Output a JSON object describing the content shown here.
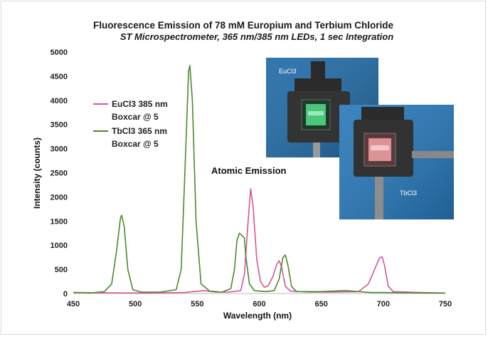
{
  "chart_data": {
    "type": "line",
    "title": "Fluorescence Emission of 78 mM Europium and Terbium Chloride",
    "subtitle": "ST Microspectrometer, 365 nm/385 nm LEDs, 1 sec Integration",
    "xlabel": "Wavelength (nm)",
    "ylabel": "Intensity (counts)",
    "xlim": [
      450,
      750
    ],
    "ylim": [
      0,
      5000
    ],
    "xticks": [
      450,
      500,
      550,
      600,
      650,
      700,
      750
    ],
    "yticks": [
      0,
      500,
      1000,
      1500,
      2000,
      2500,
      3000,
      3500,
      4000,
      4500,
      5000
    ],
    "grid": false,
    "legend_position": "left",
    "annotation": "Atomic Emission",
    "series": [
      {
        "name": "EuCl3 385 nm Boxcar @ 5",
        "color": "#d4559a",
        "points": [
          [
            450,
            20
          ],
          [
            480,
            15
          ],
          [
            510,
            10
          ],
          [
            540,
            20
          ],
          [
            555,
            60
          ],
          [
            565,
            30
          ],
          [
            575,
            30
          ],
          [
            585,
            60
          ],
          [
            588,
            400
          ],
          [
            591,
            1500
          ],
          [
            593,
            2170
          ],
          [
            595,
            1800
          ],
          [
            598,
            700
          ],
          [
            601,
            250
          ],
          [
            604,
            130
          ],
          [
            607,
            160
          ],
          [
            611,
            350
          ],
          [
            614,
            600
          ],
          [
            616,
            680
          ],
          [
            618,
            550
          ],
          [
            621,
            150
          ],
          [
            625,
            50
          ],
          [
            640,
            30
          ],
          [
            660,
            30
          ],
          [
            680,
            40
          ],
          [
            688,
            200
          ],
          [
            693,
            500
          ],
          [
            697,
            740
          ],
          [
            699,
            760
          ],
          [
            701,
            580
          ],
          [
            704,
            150
          ],
          [
            708,
            40
          ],
          [
            730,
            20
          ],
          [
            750,
            10
          ]
        ]
      },
      {
        "name": "TbCl3 365 nm Boxcar @ 5",
        "color": "#4a8a2e",
        "points": [
          [
            450,
            20
          ],
          [
            465,
            15
          ],
          [
            475,
            40
          ],
          [
            481,
            200
          ],
          [
            485,
            900
          ],
          [
            488,
            1550
          ],
          [
            489,
            1620
          ],
          [
            491,
            1400
          ],
          [
            494,
            500
          ],
          [
            498,
            80
          ],
          [
            505,
            30
          ],
          [
            520,
            30
          ],
          [
            533,
            80
          ],
          [
            537,
            500
          ],
          [
            540,
            2500
          ],
          [
            543,
            4600
          ],
          [
            544,
            4720
          ],
          [
            546,
            4000
          ],
          [
            549,
            1500
          ],
          [
            553,
            200
          ],
          [
            560,
            50
          ],
          [
            570,
            30
          ],
          [
            577,
            100
          ],
          [
            580,
            500
          ],
          [
            582,
            1100
          ],
          [
            584,
            1250
          ],
          [
            586,
            1200
          ],
          [
            588,
            1150
          ],
          [
            589,
            800
          ],
          [
            592,
            200
          ],
          [
            596,
            60
          ],
          [
            605,
            40
          ],
          [
            612,
            60
          ],
          [
            616,
            300
          ],
          [
            619,
            740
          ],
          [
            621,
            800
          ],
          [
            623,
            600
          ],
          [
            626,
            150
          ],
          [
            630,
            40
          ],
          [
            650,
            40
          ],
          [
            668,
            60
          ],
          [
            670,
            60
          ],
          [
            690,
            20
          ],
          [
            700,
            20
          ],
          [
            720,
            15
          ],
          [
            750,
            10
          ]
        ]
      }
    ]
  },
  "photos": [
    {
      "label": "EuCl3",
      "cuvette_glow": "#52e08a",
      "background": "#1f6aa6"
    },
    {
      "label": "TbCl3",
      "cuvette_glow": "#f3a3a8",
      "background": "#2677b8"
    }
  ],
  "colors": {
    "eu": "#d4559a",
    "tb": "#4a8a2e",
    "axis": "#bfbfbf"
  }
}
